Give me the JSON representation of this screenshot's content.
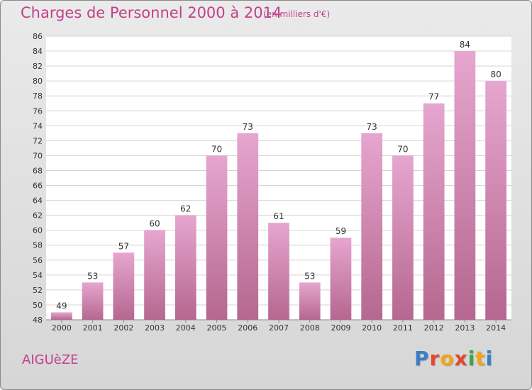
{
  "header": {
    "title": "Charges de Personnel 2000 à 2014",
    "subtitle": "(en milliers d'€)"
  },
  "footer": {
    "commune": "AIGUèZE",
    "logo": [
      "P",
      "r",
      "o",
      "x",
      "i",
      "t",
      "i"
    ]
  },
  "colors": {
    "title": "#c2408a",
    "bar_light": "#e6a6cf",
    "bar_dark": "#b5678f",
    "logo": [
      "#3a7fc4",
      "#e5472f",
      "#f2a516",
      "#e5472f",
      "#3aa648",
      "#f2a516",
      "#3a7fc4"
    ]
  },
  "chart_data": {
    "type": "bar",
    "title": "Charges de Personnel 2000 à 2014",
    "subtitle": "(en milliers d'€)",
    "categories": [
      "2000",
      "2001",
      "2002",
      "2003",
      "2004",
      "2005",
      "2006",
      "2007",
      "2008",
      "2009",
      "2010",
      "2011",
      "2012",
      "2013",
      "2014"
    ],
    "values": [
      49,
      53,
      57,
      60,
      62,
      70,
      73,
      61,
      53,
      59,
      73,
      70,
      77,
      84,
      80
    ],
    "ylim": [
      48,
      86
    ],
    "ytick_step": 2,
    "grid": true,
    "xlabel": "",
    "ylabel": ""
  }
}
